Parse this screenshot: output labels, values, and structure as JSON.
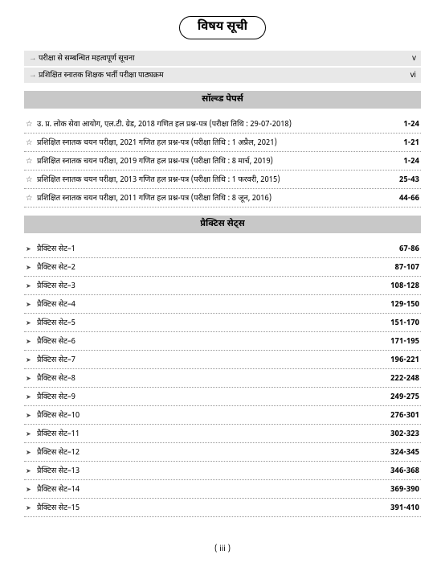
{
  "title": "विषय सूची",
  "intro": [
    {
      "label": "परीक्षा से सम्बन्धित महत्वपूर्ण सूचना",
      "pages": "v"
    },
    {
      "label": "प्रशिक्षित स्नातक शिक्षक भर्ती परीक्षा पाठ्यक्रम",
      "pages": "vi"
    }
  ],
  "sections": [
    {
      "header": "सॉल्व्ड पेपर्स",
      "bullet": "star",
      "rows": [
        {
          "label": "उ. प्र. लोक सेवा आयोग, एल.टी. ग्रेड, 2018 गणित हल प्रश्न-पत्र (परीक्षा तिथि : 29-07-2018)",
          "pages": "1-24"
        },
        {
          "label": "प्रशिक्षित स्नातक चयन परीक्षा, 2021 गणित हल प्रश्न-पत्र (परीक्षा तिथि : 1 अप्रैल, 2021)",
          "pages": "1-21"
        },
        {
          "label": "प्रशिक्षित स्नातक चयन परीक्षा, 2019 गणित हल प्रश्न-पत्र (परीक्षा तिथि : 8 मार्च, 2019)",
          "pages": "1-24"
        },
        {
          "label": "प्रशिक्षित स्नातक चयन परीक्षा, 2013 गणित हल प्रश्न-पत्र (परीक्षा तिथि : 1 फरवरी, 2015)",
          "pages": "25-43"
        },
        {
          "label": "प्रशिक्षित स्नातक चयन परीक्षा, 2011 गणित हल प्रश्न-पत्र (परीक्षा तिथि : 8 जून, 2016)",
          "pages": "44-66"
        }
      ]
    },
    {
      "header": "प्रैक्टिस सेट्स",
      "bullet": "tri",
      "rows": [
        {
          "label": "प्रैक्टिस सेट–1",
          "pages": "67-86"
        },
        {
          "label": "प्रैक्टिस सेट–2",
          "pages": "87-107"
        },
        {
          "label": "प्रैक्टिस सेट–3",
          "pages": "108-128"
        },
        {
          "label": "प्रैक्टिस सेट–4",
          "pages": "129-150"
        },
        {
          "label": "प्रैक्टिस सेट–5",
          "pages": "151-170"
        },
        {
          "label": "प्रैक्टिस सेट–6",
          "pages": "171-195"
        },
        {
          "label": "प्रैक्टिस सेट–7",
          "pages": "196-221"
        },
        {
          "label": "प्रैक्टिस सेट–8",
          "pages": "222-248"
        },
        {
          "label": "प्रैक्टिस सेट–9",
          "pages": "249-275"
        },
        {
          "label": "प्रैक्टिस सेट–10",
          "pages": "276-301"
        },
        {
          "label": "प्रैक्टिस सेट–11",
          "pages": "302-323"
        },
        {
          "label": "प्रैक्टिस सेट–12",
          "pages": "324-345"
        },
        {
          "label": "प्रैक्टिस सेट–13",
          "pages": "346-368"
        },
        {
          "label": "प्रैक्टिस सेट–14",
          "pages": "369-390"
        },
        {
          "label": "प्रैक्टिस सेट–15",
          "pages": "391-410"
        }
      ]
    }
  ],
  "footer": "( iii )",
  "colors": {
    "intro_bg": "#e8e8e8",
    "section_bg": "#c8c8c8",
    "text": "#000000",
    "dotted": "#999999"
  }
}
